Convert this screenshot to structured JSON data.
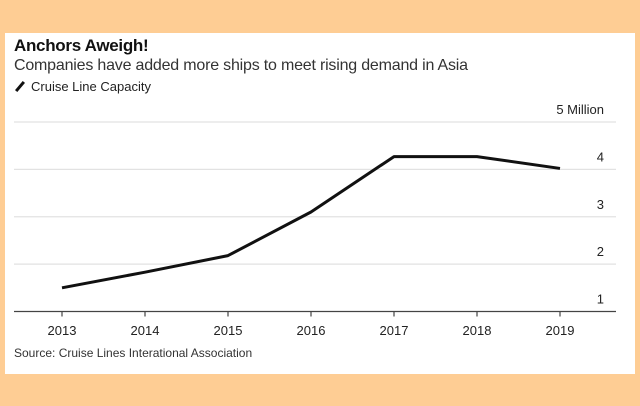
{
  "chart_data": {
    "type": "line",
    "title": "Anchors Aweigh!",
    "subtitle": "Companies have added more ships to meet rising demand in Asia",
    "categories": [
      "2013",
      "2014",
      "2015",
      "2016",
      "2017",
      "2018",
      "2019"
    ],
    "series": [
      {
        "name": "Cruise Line Capacity",
        "values": [
          1.5,
          1.83,
          2.18,
          3.1,
          4.27,
          4.27,
          4.02
        ],
        "color": "#111111"
      }
    ],
    "yticks": [
      1,
      2,
      3,
      4,
      5
    ],
    "ytick_labels": [
      "1",
      "2",
      "3",
      "4",
      "5 Million"
    ],
    "ylim": [
      1,
      5
    ],
    "grid": true,
    "legend": "top-left",
    "source": "Source: Cruise Lines Interational Association"
  },
  "colors": {
    "background": "#FECD94",
    "card": "#FFFFFF",
    "line": "#111111",
    "grid": "#E2E2E2"
  }
}
